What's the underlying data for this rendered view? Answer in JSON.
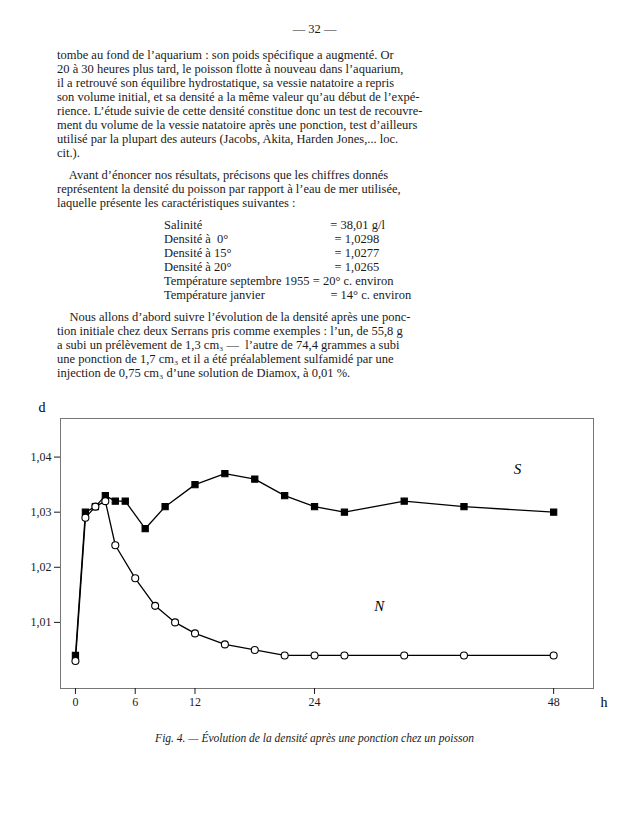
{
  "page": {
    "page_num": "— 32 —",
    "paragraph_1": [
      "tombe au fond de l’aquarium : son poids spécifique a augmenté. Or",
      "20 à 30 heures plus tard, le poisson flotte à nouveau dans l’aquarium,",
      "il a retrouvé son équilibre hydrostatique, sa vessie natatoire a repris",
      "son volume initial, et sa densité a la même valeur qu’au début de l’expé-",
      "rience. L’étude suivie de cette densité constitue donc un test de recouvre-",
      "ment du volume de la vessie natatoire après une ponction, test d’ailleurs",
      "utilisé par la plupart des auteurs (Jacobs, Akita, Harden Jones,... loc.",
      "cit.)."
    ],
    "paragraph_2": [
      "    Avant d’énoncer nos résultats, précisons que les chiffres donnés",
      "représentent la densité du poisson par rapport à l’eau de mer utilisée,",
      "laquelle présente les caractéristiques suivantes :"
    ],
    "table_lines": [
      "Salinité                                         = 38,01 g/l",
      "Densité à  0°                                  = 1,0298",
      "Densité à 15°                                 = 1,0277",
      "Densité à 20°                                 = 1,0265",
      "Température septembre 1955 = 20° c. environ",
      "Température janvier                     = 14° c. environ"
    ],
    "paragraph_3": [
      "    Nous allons d’abord suivre l’évolution de la densité après une ponc-",
      "tion initiale chez deux Serrans pris comme exemples : l’un, de 55,8 g",
      "a subi un prélèvement de 1,3 cm₃ —  l’autre de 74,4 grammes a subi",
      "une ponction de 1,7 cm₃ et il a été préalablement sulfamidé par une",
      "injection de 0,75 cm₃ d’une solution de Diamox, à 0,01 %."
    ]
  },
  "chart_data": {
    "type": "line",
    "caption": "Fig. 4.  —  Évolution de la densité après une ponction chez un poisson",
    "x_label": "h",
    "y_label": "d",
    "xlim": [
      -1.5,
      52
    ],
    "ylim": [
      0.998,
      1.047
    ],
    "xticks": [
      0,
      6,
      12,
      24,
      48
    ],
    "yticks": [
      {
        "value": 1.01,
        "label": "1,01"
      },
      {
        "value": 1.02,
        "label": "1,02"
      },
      {
        "value": 1.03,
        "label": "1,03"
      },
      {
        "value": 1.04,
        "label": "1,04"
      }
    ],
    "grid": false,
    "series": [
      {
        "color": "black",
        "marker": "square",
        "line_style": "solid",
        "x": [
          0,
          1,
          2,
          3,
          4,
          5,
          7,
          9,
          12,
          15,
          18,
          21,
          24,
          27,
          33,
          39,
          48
        ],
        "values": [
          1.004,
          1.03,
          1.031,
          1.033,
          1.032,
          1.032,
          1.027,
          1.031,
          1.035,
          1.037,
          1.036,
          1.033,
          1.031,
          1.03,
          1.032,
          1.031,
          1.03
        ]
      },
      {
        "color": "black",
        "marker": "circle-open",
        "line_style": "solid",
        "x": [
          0,
          1,
          2,
          3,
          4,
          6,
          8,
          10,
          12,
          15,
          18,
          21,
          24,
          27,
          33,
          39,
          48
        ],
        "values": [
          1.003,
          1.029,
          1.031,
          1.032,
          1.024,
          1.018,
          1.013,
          1.01,
          1.008,
          1.006,
          1.005,
          1.004,
          1.004,
          1.004,
          1.004,
          1.004,
          1.004
        ]
      }
    ],
    "annotations": [
      {
        "text": "S",
        "x": 44,
        "y": 1.037
      },
      {
        "text": "N",
        "x": 30,
        "y": 1.012
      }
    ]
  }
}
